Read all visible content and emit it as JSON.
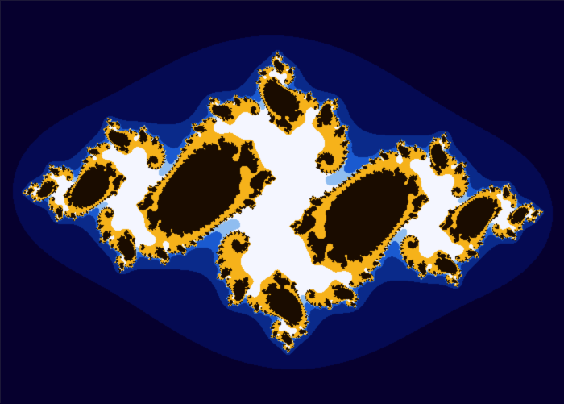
{
  "scene": {
    "subject": "julia-set-fractal",
    "constant": {
      "re": -0.75,
      "im": 0.11
    },
    "view": {
      "re_min": -1.62,
      "re_max": 1.62,
      "im_min": -1.15,
      "im_max": 1.15
    },
    "max_iterations": 150,
    "colors": {
      "background": "#06002e",
      "outer_halo": "#050a52",
      "mid_blue": "#0a2a8a",
      "bright_blue": "#1a5ad0",
      "light_blue": "#8fbdf0",
      "white": "#f4f6ff",
      "gold": "#f6b21a",
      "dark_core": "#1a0c00"
    }
  }
}
